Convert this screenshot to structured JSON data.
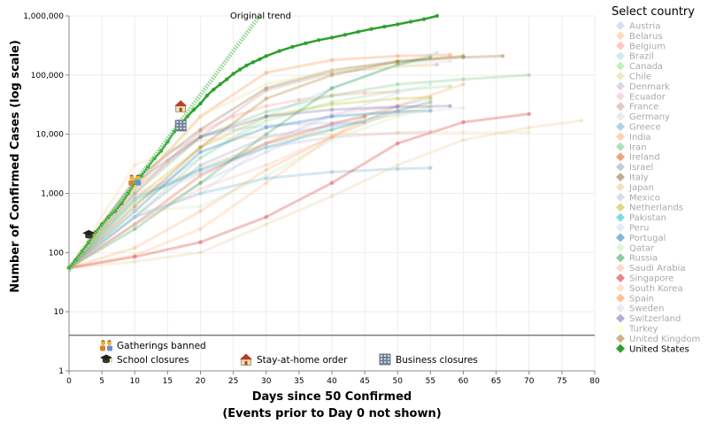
{
  "chart_data": {
    "type": "line",
    "title": "",
    "xlabel": "Days since 50 Confirmed",
    "xlabel_sub": "(Events prior to Day 0 not shown)",
    "ylabel": "Number of Confirmed Cases (log scale)",
    "yscale": "log",
    "xlim": [
      0,
      80
    ],
    "ylim": [
      1,
      1000000
    ],
    "grid": true,
    "x_ticks": [
      "0",
      "5",
      "10",
      "15",
      "20",
      "25",
      "30",
      "35",
      "40",
      "45",
      "50",
      "55",
      "60",
      "65",
      "70",
      "75",
      "80"
    ],
    "y_ticks": [
      {
        "value": 1,
        "label": "1"
      },
      {
        "value": 10,
        "label": "10"
      },
      {
        "value": 100,
        "label": "100"
      },
      {
        "value": 1000,
        "label": "1,000"
      },
      {
        "value": 10000,
        "label": "10,000"
      },
      {
        "value": 100000,
        "label": "100,000"
      },
      {
        "value": 1000000,
        "label": "1,000,000"
      }
    ],
    "trend": {
      "label": "Original trend",
      "x": [
        0,
        29
      ],
      "y": [
        50,
        1000000
      ]
    },
    "legend": {
      "title": "Select country",
      "placement": "right",
      "highlighted": "United States"
    },
    "series": [
      {
        "name": "Austria",
        "color": "#aec7e8",
        "x": [
          0,
          5,
          10,
          15,
          20,
          25,
          30,
          35,
          40,
          45
        ],
        "y": [
          55,
          300,
          1400,
          5000,
          9000,
          12000,
          14000,
          15000,
          15500,
          15800
        ]
      },
      {
        "name": "Belarus",
        "color": "#ffbb78",
        "x": [
          0,
          10,
          20,
          30,
          40,
          45,
          50
        ],
        "y": [
          55,
          90,
          250,
          1500,
          9000,
          20000,
          30000
        ]
      },
      {
        "name": "Belgium",
        "color": "#ff9896",
        "x": [
          0,
          5,
          10,
          15,
          20,
          25,
          30,
          35,
          40,
          45,
          50
        ],
        "y": [
          55,
          250,
          1000,
          3500,
          11000,
          20000,
          30000,
          38000,
          45000,
          50000,
          52000
        ]
      },
      {
        "name": "Brazil",
        "color": "#9edae5",
        "x": [
          0,
          10,
          20,
          30,
          40,
          50,
          56
        ],
        "y": [
          55,
          700,
          4000,
          20000,
          60000,
          150000,
          240000
        ]
      },
      {
        "name": "Canada",
        "color": "#98df8a",
        "x": [
          0,
          10,
          20,
          30,
          40,
          50,
          58
        ],
        "y": [
          55,
          400,
          4000,
          17000,
          35000,
          55000,
          65000
        ]
      },
      {
        "name": "Chile",
        "color": "#dbdb8d",
        "x": [
          0,
          10,
          20,
          30,
          40,
          50,
          55
        ],
        "y": [
          55,
          700,
          2700,
          7000,
          12000,
          22000,
          30000
        ]
      },
      {
        "name": "Denmark",
        "color": "#c5b0d5",
        "x": [
          0,
          10,
          20,
          30,
          40,
          50,
          55
        ],
        "y": [
          55,
          900,
          2200,
          6000,
          9000,
          10500,
          11000
        ]
      },
      {
        "name": "Ecuador",
        "color": "#f7b6d2",
        "x": [
          0,
          10,
          20,
          30,
          40,
          50
        ],
        "y": [
          55,
          1000,
          2500,
          7000,
          22000,
          30000
        ]
      },
      {
        "name": "France",
        "color": "#c49c94",
        "x": [
          0,
          10,
          20,
          30,
          40,
          50,
          56
        ],
        "y": [
          55,
          1200,
          9000,
          55000,
          110000,
          140000,
          150000
        ]
      },
      {
        "name": "Germany",
        "color": "#d9d9d9",
        "x": [
          0,
          10,
          20,
          30,
          40,
          50,
          58
        ],
        "y": [
          55,
          1300,
          20000,
          70000,
          120000,
          160000,
          170000
        ]
      },
      {
        "name": "Greece",
        "color": "#6baed6",
        "x": [
          0,
          10,
          20,
          30,
          40,
          50,
          55
        ],
        "y": [
          55,
          400,
          1000,
          1800,
          2300,
          2600,
          2700
        ]
      },
      {
        "name": "India",
        "color": "#fdae6b",
        "x": [
          0,
          10,
          20,
          30,
          40,
          50,
          60
        ],
        "y": [
          55,
          120,
          500,
          2500,
          9000,
          30000,
          70000
        ]
      },
      {
        "name": "Iran",
        "color": "#74c476",
        "x": [
          0,
          10,
          20,
          30,
          40,
          50,
          60,
          70
        ],
        "y": [
          55,
          1000,
          9000,
          24000,
          45000,
          70000,
          85000,
          100000
        ]
      },
      {
        "name": "Ireland",
        "color": "#e6550d",
        "x": [
          0,
          10,
          20,
          30,
          40,
          45
        ],
        "y": [
          55,
          300,
          2000,
          7000,
          15000,
          20000
        ]
      },
      {
        "name": "Israel",
        "color": "#9e9ac8",
        "x": [
          0,
          10,
          20,
          30,
          40,
          45
        ],
        "y": [
          55,
          400,
          3000,
          9000,
          14000,
          16000
        ]
      },
      {
        "name": "Italy",
        "color": "#8c6d31",
        "x": [
          0,
          10,
          20,
          30,
          40,
          50,
          60,
          66
        ],
        "y": [
          55,
          1700,
          12000,
          60000,
          120000,
          170000,
          200000,
          210000
        ]
      },
      {
        "name": "Japan",
        "color": "#e7cb94",
        "x": [
          0,
          10,
          20,
          30,
          40,
          50,
          60,
          70,
          78
        ],
        "y": [
          55,
          70,
          100,
          300,
          900,
          3000,
          8000,
          13000,
          17000
        ]
      },
      {
        "name": "Mexico",
        "color": "#bcbddc",
        "x": [
          0,
          10,
          20,
          30,
          40,
          50,
          55
        ],
        "y": [
          55,
          300,
          1500,
          5000,
          15000,
          30000,
          40000
        ]
      },
      {
        "name": "Netherlands",
        "color": "#bdbd22",
        "x": [
          0,
          10,
          20,
          30,
          40,
          50,
          55
        ],
        "y": [
          55,
          800,
          6000,
          20000,
          32000,
          40000,
          42000
        ]
      },
      {
        "name": "Pakistan",
        "color": "#17becf",
        "x": [
          0,
          10,
          20,
          30,
          40,
          50,
          55
        ],
        "y": [
          55,
          800,
          2500,
          6000,
          12000,
          25000,
          35000
        ]
      },
      {
        "name": "Peru",
        "color": "#c6dbef",
        "x": [
          0,
          10,
          20,
          30,
          40,
          50,
          55
        ],
        "y": [
          55,
          400,
          1000,
          7000,
          20000,
          50000,
          70000
        ]
      },
      {
        "name": "Portugal",
        "color": "#1f77b4",
        "x": [
          0,
          10,
          20,
          30,
          40,
          50,
          55
        ],
        "y": [
          55,
          500,
          5000,
          13000,
          20000,
          24000,
          25000
        ]
      },
      {
        "name": "Qatar",
        "color": "#c7e9c0",
        "x": [
          0,
          10,
          20,
          30,
          40,
          50,
          55
        ],
        "y": [
          55,
          500,
          600,
          2000,
          8000,
          20000,
          28000
        ]
      },
      {
        "name": "Russia",
        "color": "#31a354",
        "x": [
          0,
          10,
          20,
          30,
          40,
          50,
          55
        ],
        "y": [
          55,
          250,
          1500,
          10000,
          60000,
          150000,
          200000
        ]
      },
      {
        "name": "Saudi Arabia",
        "color": "#fcbba1",
        "x": [
          0,
          10,
          20,
          30,
          40,
          50,
          55
        ],
        "y": [
          55,
          300,
          1200,
          3000,
          9000,
          25000,
          35000
        ]
      },
      {
        "name": "Singapore",
        "color": "#d62728",
        "x": [
          0,
          10,
          20,
          30,
          40,
          50,
          60,
          70
        ],
        "y": [
          55,
          85,
          150,
          400,
          1500,
          7000,
          16000,
          22000
        ]
      },
      {
        "name": "South Korea",
        "color": "#fdd0a2",
        "x": [
          0,
          10,
          20,
          30,
          40,
          50,
          60,
          70
        ],
        "y": [
          55,
          3000,
          8000,
          9000,
          10000,
          10500,
          10700,
          10800
        ]
      },
      {
        "name": "Spain",
        "color": "#fd8d3c",
        "x": [
          0,
          10,
          20,
          30,
          40,
          50,
          58
        ],
        "y": [
          55,
          1200,
          20000,
          110000,
          180000,
          210000,
          220000
        ]
      },
      {
        "name": "Sweden",
        "color": "#dadaeb",
        "x": [
          0,
          10,
          20,
          30,
          40,
          50,
          60
        ],
        "y": [
          55,
          800,
          2000,
          6000,
          13000,
          22000,
          28000
        ]
      },
      {
        "name": "Switzerland",
        "color": "#756bb1",
        "x": [
          0,
          10,
          20,
          30,
          40,
          50,
          58
        ],
        "y": [
          55,
          1500,
          9000,
          20000,
          26000,
          29000,
          30000
        ]
      },
      {
        "name": "Turkey",
        "color": "#ffffb2",
        "x": [
          0,
          10,
          20,
          30,
          40,
          50,
          55
        ],
        "y": [
          55,
          1200,
          20000,
          70000,
          120000,
          140000,
          145000
        ]
      },
      {
        "name": "United Kingdom",
        "color": "#a6761d",
        "x": [
          0,
          10,
          20,
          30,
          40,
          50,
          60
        ],
        "y": [
          55,
          600,
          6000,
          40000,
          100000,
          170000,
          210000
        ]
      },
      {
        "name": "United States",
        "color": "#2ca02c",
        "highlighted": true,
        "x": [
          0,
          1,
          2,
          3,
          4,
          5,
          6,
          7,
          8,
          9,
          10,
          11,
          12,
          13,
          14,
          15,
          16,
          17,
          18,
          19,
          20,
          21,
          22,
          23,
          24,
          25,
          26,
          27,
          28,
          29,
          30,
          32,
          34,
          36,
          38,
          40,
          42,
          44,
          46,
          48,
          50,
          52,
          54,
          56
        ],
        "y": [
          55,
          75,
          105,
          150,
          220,
          300,
          400,
          500,
          680,
          1000,
          1500,
          2000,
          2800,
          3900,
          5200,
          7500,
          11000,
          14500,
          20000,
          26000,
          33000,
          45000,
          57000,
          70000,
          85000,
          105000,
          124000,
          145000,
          165000,
          185000,
          210000,
          255000,
          300000,
          345000,
          390000,
          430000,
          480000,
          540000,
          600000,
          660000,
          720000,
          800000,
          880000,
          1000000
        ]
      }
    ],
    "events": [
      {
        "label": "Gatherings banned",
        "icon": "gatherings-icon",
        "x": 10,
        "y": 1700
      },
      {
        "label": "School closures",
        "icon": "school-icon",
        "x": 3,
        "y": 200
      },
      {
        "label": "Stay-at-home order",
        "icon": "home-icon",
        "x": 17,
        "y": 30000
      },
      {
        "label": "Business closures",
        "icon": "business-icon",
        "x": 17,
        "y": 14000
      }
    ]
  }
}
